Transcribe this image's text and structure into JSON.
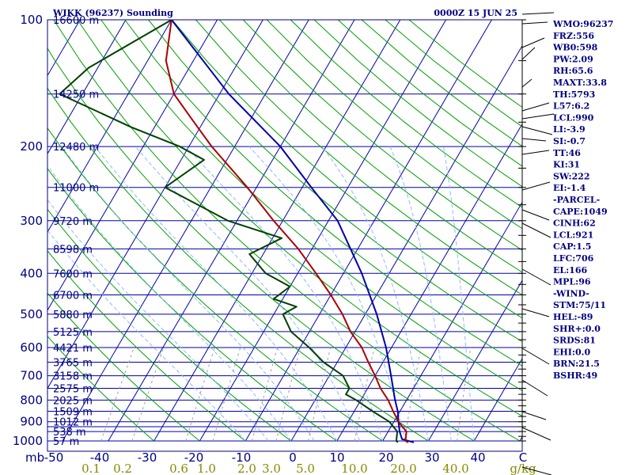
{
  "header": {
    "station": "WIKK (96237) Sounding",
    "time": "0000Z 15 JUN 25"
  },
  "colors": {
    "frame": "#000080",
    "isobar": "#0000aa",
    "isotherm": "#0000aa",
    "dry_adiabat": "#00a000",
    "moist_adiabat": "#8fb8ff",
    "mixing_ratio": "#a0a0a0",
    "temperature": "#aa0000",
    "dewpoint": "#004000",
    "parcel": "#0000aa",
    "wind": "#000000"
  },
  "chart_data": {
    "type": "line",
    "subtype": "skew-t log-p",
    "pressure_axis_label": "mb",
    "pressure_ticks": [
      "100",
      "200",
      "300",
      "400",
      "500",
      "600",
      "700",
      "800",
      "900",
      "1000"
    ],
    "isobars": [
      100,
      150,
      200,
      250,
      300,
      350,
      400,
      450,
      500,
      550,
      600,
      650,
      700,
      750,
      800,
      850,
      900,
      925,
      950,
      1000
    ],
    "heights": [
      {
        "p": 100,
        "label": "16600 m"
      },
      {
        "p": 150,
        "label": "14250 m"
      },
      {
        "p": 200,
        "label": "12480 m"
      },
      {
        "p": 250,
        "label": "11000 m"
      },
      {
        "p": 300,
        "label": "9720 m"
      },
      {
        "p": 350,
        "label": "8598 m"
      },
      {
        "p": 400,
        "label": "7600 m"
      },
      {
        "p": 450,
        "label": "6700 m"
      },
      {
        "p": 500,
        "label": "5880 m"
      },
      {
        "p": 550,
        "label": "5125 m"
      },
      {
        "p": 600,
        "label": "4421 m"
      },
      {
        "p": 650,
        "label": "3765 m"
      },
      {
        "p": 700,
        "label": "3158 m"
      },
      {
        "p": 750,
        "label": "2575 m"
      },
      {
        "p": 800,
        "label": "2025 m"
      },
      {
        "p": 850,
        "label": "1509 m"
      },
      {
        "p": 900,
        "label": "1012 m"
      },
      {
        "p": 950,
        "label": "538 m"
      },
      {
        "p": 1000,
        "label": "57 m"
      }
    ],
    "temperature_ticks": [
      "-50",
      "-40",
      "-30",
      "-20",
      "-10",
      "0",
      "10",
      "20",
      "30",
      "40",
      "C"
    ],
    "mixing_ratio_ticks": [
      "0.1",
      "0.2",
      "0.6",
      "1.0",
      "2.0",
      "3.0",
      "5.0",
      "10.0",
      "20.0",
      "40.0",
      "g/kg"
    ],
    "temperature_profile": [
      {
        "p": 1008,
        "t": 25.8
      },
      {
        "p": 1000,
        "t": 25.0
      },
      {
        "p": 975,
        "t": 24.5
      },
      {
        "p": 950,
        "t": 24.0
      },
      {
        "p": 925,
        "t": 22.5
      },
      {
        "p": 900,
        "t": 21.0
      },
      {
        "p": 850,
        "t": 18.5
      },
      {
        "p": 800,
        "t": 16.0
      },
      {
        "p": 750,
        "t": 12.8
      },
      {
        "p": 700,
        "t": 10.0
      },
      {
        "p": 650,
        "t": 6.8
      },
      {
        "p": 600,
        "t": 3.5
      },
      {
        "p": 550,
        "t": -1.0
      },
      {
        "p": 500,
        "t": -5.0
      },
      {
        "p": 450,
        "t": -10.0
      },
      {
        "p": 400,
        "t": -16.0
      },
      {
        "p": 350,
        "t": -23.0
      },
      {
        "p": 300,
        "t": -32.0
      },
      {
        "p": 250,
        "t": -42.0
      },
      {
        "p": 200,
        "t": -55.0
      },
      {
        "p": 175,
        "t": -62.0
      },
      {
        "p": 150,
        "t": -70.0
      },
      {
        "p": 125,
        "t": -76.0
      },
      {
        "p": 100,
        "t": -80.0
      }
    ],
    "dewpoint_profile": [
      {
        "p": 1008,
        "t": 23.5
      },
      {
        "p": 1000,
        "t": 23.0
      },
      {
        "p": 950,
        "t": 22.0
      },
      {
        "p": 900,
        "t": 19.0
      },
      {
        "p": 850,
        "t": 14.0
      },
      {
        "p": 800,
        "t": 9.0
      },
      {
        "p": 775,
        "t": 6.0
      },
      {
        "p": 750,
        "t": 6.0
      },
      {
        "p": 700,
        "t": 3.0
      },
      {
        "p": 650,
        "t": -3.0
      },
      {
        "p": 600,
        "t": -8.0
      },
      {
        "p": 550,
        "t": -14.0
      },
      {
        "p": 500,
        "t": -18.0
      },
      {
        "p": 480,
        "t": -16.0
      },
      {
        "p": 460,
        "t": -22.0
      },
      {
        "p": 430,
        "t": -20.0
      },
      {
        "p": 400,
        "t": -27.0
      },
      {
        "p": 360,
        "t": -33.0
      },
      {
        "p": 330,
        "t": -28.0
      },
      {
        "p": 300,
        "t": -42.0
      },
      {
        "p": 250,
        "t": -60.0
      },
      {
        "p": 215,
        "t": -55.0
      },
      {
        "p": 200,
        "t": -62.0
      },
      {
        "p": 180,
        "t": -75.0
      },
      {
        "p": 150,
        "t": -95.0
      },
      {
        "p": 130,
        "t": -92.0
      },
      {
        "p": 100,
        "t": -80.0
      }
    ],
    "parcel_profile": [
      {
        "p": 1008,
        "t": 27.0
      },
      {
        "p": 990,
        "t": 24.0
      },
      {
        "p": 950,
        "t": 22.5
      },
      {
        "p": 900,
        "t": 21.0
      },
      {
        "p": 850,
        "t": 19.5
      },
      {
        "p": 800,
        "t": 17.5
      },
      {
        "p": 700,
        "t": 13.5
      },
      {
        "p": 600,
        "t": 8.8
      },
      {
        "p": 500,
        "t": 2.5
      },
      {
        "p": 400,
        "t": -6.0
      },
      {
        "p": 300,
        "t": -18.0
      },
      {
        "p": 250,
        "t": -28.0
      },
      {
        "p": 200,
        "t": -40.0
      },
      {
        "p": 150,
        "t": -58.0
      },
      {
        "p": 100,
        "t": -80.0
      }
    ]
  },
  "indices": [
    "WMO:96237",
    "FRZ:556",
    "WB0:598",
    "PW:2.09",
    "RH:65.6",
    "MAXT:33.8",
    "TH:5793",
    "L57:6.2",
    "LCL:990",
    "LI:-3.9",
    "SI:-0.7",
    "TT:46",
    "KI:31",
    "SW:222",
    "EI:-1.4",
    "-PARCEL-",
    "CAPE:1049",
    "CINH:62",
    "LCL:921",
    "CAP:1.5",
    "LFC:706",
    "EL:166",
    "MPL:96",
    "-WIND-",
    "STM:75/11",
    "HEL:-89",
    "SHR+:0.0",
    "SRDS:81",
    "EHI:0.0",
    "BRN:21.5",
    "BSHR:49"
  ]
}
